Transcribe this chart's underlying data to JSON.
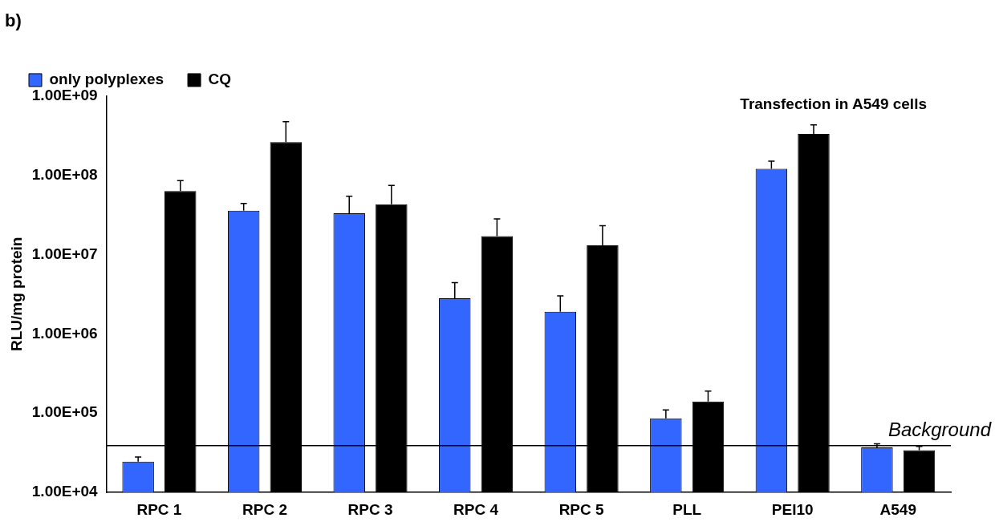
{
  "chart_data": {
    "type": "bar",
    "title": "b)",
    "ylabel": "RLU/mg protein",
    "log": true,
    "grid": false,
    "legend": "top left",
    "categories": [
      "RPC 1",
      "RPC 2",
      "RPC 3",
      "RPC 4",
      "RPC 5",
      "PLL",
      "PEI10",
      "A549"
    ],
    "series": [
      {
        "name": "only polyplexes",
        "color": "#3366ff",
        "values": [
          24500,
          35500000,
          33000000,
          2800000,
          1900000,
          86000,
          120000000,
          37000
        ],
        "errors": [
          [
            24500,
            28000
          ],
          [
            35500000,
            44000000
          ],
          [
            33000000,
            54000000
          ],
          [
            2800000,
            4400000
          ],
          [
            1900000,
            3000000
          ],
          [
            86000,
            110000
          ],
          [
            120000000,
            150000000
          ],
          [
            37000,
            41000
          ]
        ]
      },
      {
        "name": "CQ",
        "color": "#000000",
        "values": [
          63000000,
          260000000,
          43000000,
          17000000,
          13000000,
          140000,
          330000000,
          34000
        ],
        "errors": [
          [
            63000000,
            85000000
          ],
          [
            260000000,
            470000000
          ],
          [
            43000000,
            74000000
          ],
          [
            17000000,
            28000000
          ],
          [
            13000000,
            23000000
          ],
          [
            140000,
            190000
          ],
          [
            330000000,
            430000000
          ],
          [
            34000,
            38000
          ]
        ]
      }
    ],
    "ylim": [
      10000,
      1000000000
    ],
    "yticks": [
      {
        "value": 10000,
        "label": "1.00E+04"
      },
      {
        "value": 100000,
        "label": "1.00E+05"
      },
      {
        "value": 1000000,
        "label": "1.00E+06"
      },
      {
        "value": 10000000,
        "label": "1.00E+07"
      },
      {
        "value": 100000000,
        "label": "1.00E+08"
      },
      {
        "value": 1000000000,
        "label": "1.00E+09"
      }
    ],
    "ref_lines": [
      {
        "axis": "y",
        "value": 39000,
        "label": "Background",
        "color": "#000000"
      }
    ],
    "annotations": [
      "Transfection in A549 cells"
    ]
  }
}
